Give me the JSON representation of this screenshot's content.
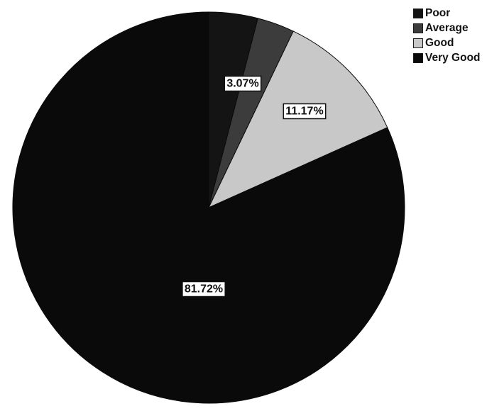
{
  "chart_data": {
    "type": "pie",
    "title": "",
    "start_angle_deg": 0,
    "direction": "clockwise",
    "legend_position": "top-right",
    "slices": [
      {
        "label": "Poor",
        "value": 4.04,
        "color": "#141414",
        "data_label": ""
      },
      {
        "label": "Average",
        "value": 3.07,
        "color": "#3c3c3c",
        "data_label": "3.07%"
      },
      {
        "label": "Good",
        "value": 11.17,
        "color": "#c8c8c8",
        "data_label": "11.17%"
      },
      {
        "label": "Very Good",
        "value": 81.72,
        "color": "#0a0a0a",
        "data_label": "81.72%"
      }
    ]
  }
}
